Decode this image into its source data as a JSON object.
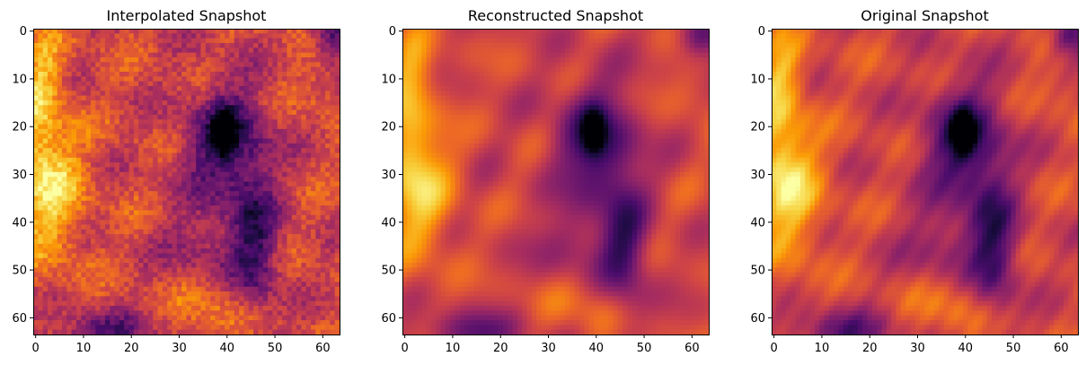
{
  "figure": {
    "colormap": "inferno",
    "colors": [
      "#000004",
      "#1b0c41",
      "#4a0c6b",
      "#781c6d",
      "#a52c60",
      "#cf4446",
      "#ed6925",
      "#fb9b06",
      "#f7d13d",
      "#fcffa4"
    ]
  },
  "chart_data": [
    {
      "type": "heatmap",
      "title": "Interpolated Snapshot",
      "xlabel": "",
      "ylabel": "",
      "grid": false,
      "xlim": [
        -0.5,
        63.5
      ],
      "ylim": [
        63.5,
        -0.5
      ],
      "x_ticks": [
        0,
        10,
        20,
        30,
        40,
        50,
        60
      ],
      "y_ticks": [
        0,
        10,
        20,
        30,
        40,
        50,
        60
      ],
      "shape": [
        64,
        64
      ],
      "pixelated": true
    },
    {
      "type": "heatmap",
      "title": "Reconstructed Snapshot",
      "xlabel": "",
      "ylabel": "",
      "grid": false,
      "xlim": [
        -0.5,
        63.5
      ],
      "ylim": [
        63.5,
        -0.5
      ],
      "x_ticks": [
        0,
        10,
        20,
        30,
        40,
        50,
        60
      ],
      "y_ticks": [
        0,
        10,
        20,
        30,
        40,
        50,
        60
      ],
      "shape": [
        64,
        64
      ],
      "pixelated": false
    },
    {
      "type": "heatmap",
      "title": "Original Snapshot",
      "xlabel": "",
      "ylabel": "",
      "grid": false,
      "xlim": [
        -0.5,
        63.5
      ],
      "ylim": [
        63.5,
        -0.5
      ],
      "x_ticks": [
        0,
        10,
        20,
        30,
        40,
        50,
        60
      ],
      "y_ticks": [
        0,
        10,
        20,
        30,
        40,
        50,
        60
      ],
      "shape": [
        64,
        64
      ],
      "pixelated": false
    }
  ]
}
